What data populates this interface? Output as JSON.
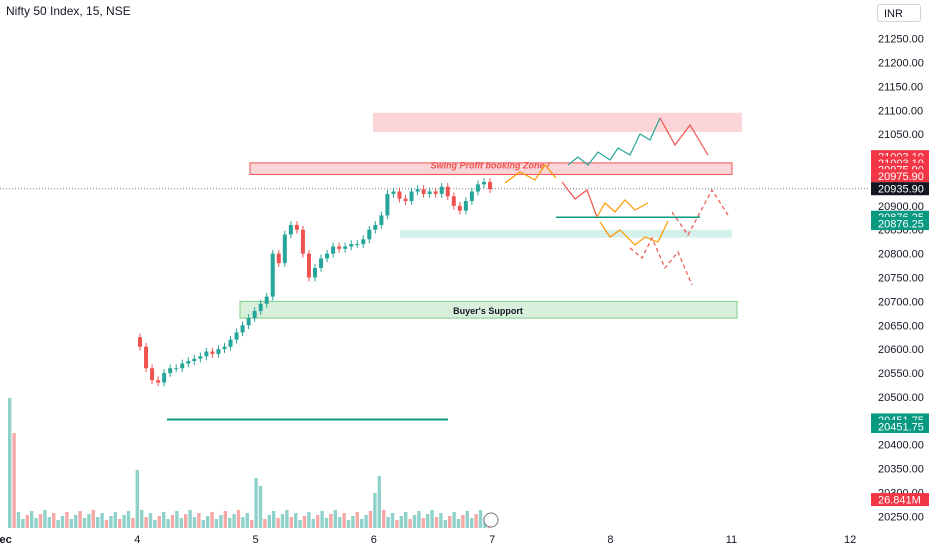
{
  "header": {
    "title": "Nifty 50 Index, 15, NSE",
    "currency": "INR"
  },
  "chart_data": {
    "type": "candlestick",
    "ylim": [
      20225,
      21300
    ],
    "y_ticks": [
      20250,
      20300,
      20350,
      20400,
      20450,
      20500,
      20550,
      20600,
      20650,
      20700,
      20750,
      20800,
      20850,
      20900,
      20950,
      21000,
      21050,
      21100,
      21150,
      21200,
      21250
    ],
    "x_ticks": [
      {
        "label": "Dec",
        "bar": -8
      },
      {
        "label": "4",
        "bar": 24
      },
      {
        "label": "5",
        "bar": 50
      },
      {
        "label": "6",
        "bar": 76
      },
      {
        "label": "7",
        "bar": 102
      },
      {
        "label": "8",
        "bar": 128
      },
      {
        "label": "11",
        "bar": 154
      },
      {
        "label": "12",
        "bar": 180
      }
    ],
    "colors": {
      "up": "#26a69a",
      "down": "#ef5350",
      "support": "#d8efdb",
      "supportBorder": "#7ccf8a",
      "resistance": "#fbd5d7",
      "resistanceBorder": "#ef5350",
      "cyanZone": "#d5efea"
    },
    "candles_start": [
      20560,
      20600,
      20540,
      20520,
      20560,
      20590,
      20600,
      20620,
      20660,
      20690,
      20710,
      20800,
      20850,
      20820,
      20860,
      20780,
      20800,
      20830,
      20880,
      20930,
      20900,
      20920,
      20890,
      20930,
      20910,
      20900,
      20930,
      20930
    ],
    "closes": [
      20560,
      20520,
      20540,
      20550,
      20555,
      20560,
      20565,
      20575,
      20590,
      20595,
      20590,
      20605,
      20610,
      20630,
      20650,
      20665,
      20690,
      20700,
      20720,
      20710,
      20720,
      20730,
      20760,
      20790,
      20800,
      20840,
      20860,
      20870,
      20900,
      20920,
      20910,
      20935
    ],
    "volume_unit": "M",
    "labels": {
      "resistance": "Swing Profit booking Zone /",
      "support": "Buyer's Support"
    },
    "price_tags": [
      {
        "value": "21003.10",
        "price": 21003.1,
        "kind": "red"
      },
      {
        "value": "21003.10",
        "price": 20990,
        "kind": "red"
      },
      {
        "value": "20975.90",
        "price": 20975.9,
        "kind": "red"
      },
      {
        "value": "20975.90",
        "price": 20963,
        "kind": "red"
      },
      {
        "value": "20935.90",
        "price": 20935.9,
        "kind": "dark"
      },
      {
        "value": "20876.25",
        "price": 20876.25,
        "kind": "green"
      },
      {
        "value": "20876.25",
        "price": 20863,
        "kind": "green"
      },
      {
        "value": "20451.75",
        "price": 20451.75,
        "kind": "green"
      },
      {
        "value": "20451.75",
        "price": 20438,
        "kind": "green"
      },
      {
        "value": "26.841M",
        "price": 20285,
        "kind": "red"
      }
    ]
  }
}
